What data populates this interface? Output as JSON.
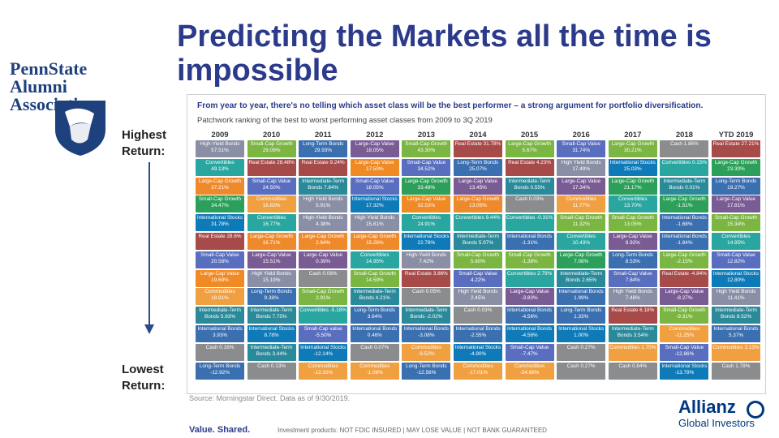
{
  "page": {
    "title": "Predicting the Markets all the time is impossible",
    "psu_logo_line1": "PennState",
    "psu_logo_line2": "Alumni Association",
    "label_high": "Highest Return:",
    "label_low": "Lowest Return:",
    "source": "Source: Morningstar Direct. Data as of 9/30/2019.",
    "footer_left": "Value. Shared.",
    "footer_mid": "Investment products: NOT FDIC INSURED | MAY LOSE VALUE | NOT BANK GUARANTEED",
    "allianz_name": "Allianz",
    "allianz_sub": "Global Investors"
  },
  "chart_data": {
    "type": "table",
    "title": "From year to year, there's no telling which asset class will be the best performer – a strong argument for portfolio diversification.",
    "subtitle": "Patchwork ranking of the best to worst performing asset classes from 2009 to 3Q 2019",
    "years": [
      "2009",
      "2010",
      "2011",
      "2012",
      "2013",
      "2014",
      "2015",
      "2016",
      "2017",
      "2018",
      "YTD 2019"
    ],
    "colors": {
      "High-Yield": "#7b7f9a",
      "Small-Cap Growth": "#7bb542",
      "Long-Term": "#3a6fb0",
      "Large-Cap Value": "#7a5c95",
      "Small-Cap Value": "#5a6ec0",
      "Real Estate": "#a64a4a",
      "Large-Cap": "#f08a24",
      "Cash": "#8a8c8e",
      "Large-Cap Growth": "#2ca05a",
      "Intermediate-Term": "#d34a6e",
      "Convertibles": "#2aa6a0",
      "International": "#0f7ab8",
      "Small-Cap": "#2a8a9a",
      "Commodities": "#9b4f96",
      "Long-Term 2": "#c25a3a"
    },
    "columns": [
      [
        {
          "text": "High-Yield Bonds 57.51%",
          "c": "#8a8fa5"
        },
        {
          "text": "Convertibles 49.13%",
          "c": "#2aa6a0"
        },
        {
          "text": "Large-Cap Growth 37.21%",
          "c": "#ef8a2c"
        },
        {
          "text": "Small-Cap Growth 34.47%",
          "c": "#2ca05a"
        },
        {
          "text": "International Stocks 31.78%",
          "c": "#0f7ab8"
        },
        {
          "text": "Real Estate 28.6%",
          "c": "#a64a4a"
        },
        {
          "text": "Small-Cap Value 20.58%",
          "c": "#5a6ec0"
        },
        {
          "text": "Large-Cap Value 19.69%",
          "c": "#f08a24"
        },
        {
          "text": "Commodities 18.91%",
          "c": "#f0a040"
        },
        {
          "text": "Intermediate-Term Bonds 5.93%",
          "c": "#2a8a9a"
        },
        {
          "text": "International Bonds 3.93%",
          "c": "#3a6fb0"
        },
        {
          "text": "Cash 0.16%",
          "c": "#8a8c8e"
        },
        {
          "text": "Long-Term Bonds -12.92%",
          "c": "#3a6fb0"
        }
      ],
      [
        {
          "text": "Small-Cap Growth 29.09%",
          "c": "#7bb542"
        },
        {
          "text": "Real Estate 28.48%",
          "c": "#a64a4a"
        },
        {
          "text": "Small-Cap Value 24.50%",
          "c": "#5a6ec0"
        },
        {
          "text": "Commodities 16.83%",
          "c": "#f0a040"
        },
        {
          "text": "Convertibles 16.77%",
          "c": "#2aa6a0"
        },
        {
          "text": "Large-Cap Growth 16.71%",
          "c": "#ef8a2c"
        },
        {
          "text": "Large-Cap Value 15.51%",
          "c": "#7a5c95"
        },
        {
          "text": "High Yield Bonds 15.19%",
          "c": "#8a8fa5"
        },
        {
          "text": "Long-Term Bonds 9.38%",
          "c": "#3a6fb0"
        },
        {
          "text": "Intermediate-Term Bonds 7.75%",
          "c": "#2a8a9a"
        },
        {
          "text": "International Stocks 8.78%",
          "c": "#0f7ab8"
        },
        {
          "text": "Intermediate-Term Bonds 3.44%",
          "c": "#2a8a9a"
        },
        {
          "text": "Cash 0.13%",
          "c": "#8a8c8e"
        }
      ],
      [
        {
          "text": "Long-Term Bonds 29.93%",
          "c": "#3a6fb0"
        },
        {
          "text": "Real Estate 9.24%",
          "c": "#a64a4a"
        },
        {
          "text": "Intermediate-Term Bonds 7.84%",
          "c": "#2a8a9a"
        },
        {
          "text": "High Yield Bonds 5.91%",
          "c": "#8a8fa5"
        },
        {
          "text": "High-Yield Bonds 4.38%",
          "c": "#8a8fa5"
        },
        {
          "text": "Large-Cap Growth 2.64%",
          "c": "#ef8a2c"
        },
        {
          "text": "Large-Cap Value 0.39%",
          "c": "#7a5c95"
        },
        {
          "text": "Cash 0.08%",
          "c": "#8a8c8e"
        },
        {
          "text": "Small-Cap Growth 2.91%",
          "c": "#7bb542"
        },
        {
          "text": "Convertibles -5.18%",
          "c": "#2aa6a0"
        },
        {
          "text": "Small-Cap value -5.50%",
          "c": "#5a6ec0"
        },
        {
          "text": "International Stocks -12.14%",
          "c": "#0f7ab8"
        },
        {
          "text": "Commodities -13.32%",
          "c": "#f0a040"
        }
      ],
      [
        {
          "text": "Large-Cap Value 18.05%",
          "c": "#7a5c95"
        },
        {
          "text": "Large-Cap Value 17.50%",
          "c": "#f08a24"
        },
        {
          "text": "Small-Cap Value 18.05%",
          "c": "#5a6ec0"
        },
        {
          "text": "International Stocks 17.32%",
          "c": "#0f7ab8"
        },
        {
          "text": "High-Yield Bonds 15.81%",
          "c": "#8a8fa5"
        },
        {
          "text": "Large-Cap Growth 15.26%",
          "c": "#ef8a2c"
        },
        {
          "text": "Convertibles 14.95%",
          "c": "#2aa6a0"
        },
        {
          "text": "Small-Cap Growth 14.59%",
          "c": "#7bb542"
        },
        {
          "text": "Intermediate-Term Bonds 4.21%",
          "c": "#2a8a9a"
        },
        {
          "text": "Long-Term Bonds 3.64%",
          "c": "#3a6fb0"
        },
        {
          "text": "International Bonds 0.46%",
          "c": "#3a6fb0"
        },
        {
          "text": "Cash 0.07%",
          "c": "#8a8c8e"
        },
        {
          "text": "Commodities -1.06%",
          "c": "#f0a040"
        }
      ],
      [
        {
          "text": "Small-Cap Growth 43.30%",
          "c": "#7bb542"
        },
        {
          "text": "Small-Cap Value 34.52%",
          "c": "#5a6ec0"
        },
        {
          "text": "Large-Cap Growth 33.48%",
          "c": "#2ca05a"
        },
        {
          "text": "Large-Cap Value 32.53%",
          "c": "#f08a24"
        },
        {
          "text": "Convertibles 24.91%",
          "c": "#2aa6a0"
        },
        {
          "text": "International Stocks 22.78%",
          "c": "#0f7ab8"
        },
        {
          "text": "High-Yield Bonds 7.42%",
          "c": "#8a8fa5"
        },
        {
          "text": "Real Estate 3.86%",
          "c": "#a64a4a"
        },
        {
          "text": "Cash 0.05%",
          "c": "#8a8c8e"
        },
        {
          "text": "Intermediate-Term Bonds -2.02%",
          "c": "#2a8a9a"
        },
        {
          "text": "International Bonds -3.08%",
          "c": "#3a6fb0"
        },
        {
          "text": "Commodities -9.52%",
          "c": "#f0a040"
        },
        {
          "text": "Long-Term Bonds -12.56%",
          "c": "#3a6fb0"
        }
      ],
      [
        {
          "text": "Real Estate 31.78%",
          "c": "#a64a4a"
        },
        {
          "text": "Long-Term Bonds 25.07%",
          "c": "#3a6fb0"
        },
        {
          "text": "Large-Cap Value 13.45%",
          "c": "#7a5c95"
        },
        {
          "text": "Large-Cap Growth 13.05%",
          "c": "#ef8a2c"
        },
        {
          "text": "Convertibles 9.44%",
          "c": "#2aa6a0"
        },
        {
          "text": "Intermediate-Term Bonds 5.97%",
          "c": "#2a8a9a"
        },
        {
          "text": "Small-Cap Growth 5.60%",
          "c": "#7bb542"
        },
        {
          "text": "Small-Cap Value 4.22%",
          "c": "#5a6ec0"
        },
        {
          "text": "High Yield Bonds 2.45%",
          "c": "#8a8fa5"
        },
        {
          "text": "Cash 0.03%",
          "c": "#8a8c8e"
        },
        {
          "text": "International Bonds -2.55%",
          "c": "#3a6fb0"
        },
        {
          "text": "International Stocks -4.90%",
          "c": "#0f7ab8"
        },
        {
          "text": "Commodities -17.01%",
          "c": "#f0a040"
        }
      ],
      [
        {
          "text": "Large-Cap Growth 5.67%",
          "c": "#7bb542"
        },
        {
          "text": "Real Estate 4.23%",
          "c": "#a64a4a"
        },
        {
          "text": "Intermediate-Term Bonds 0.55%",
          "c": "#2a8a9a"
        },
        {
          "text": "Cash 0.03%",
          "c": "#8a8c8e"
        },
        {
          "text": "Convertibles -0.31%",
          "c": "#2aa6a0"
        },
        {
          "text": "International Bonds -1.31%",
          "c": "#3a6fb0"
        },
        {
          "text": "Small-Cap Growth -1.38%",
          "c": "#7bb542"
        },
        {
          "text": "Convertibles 2.79%",
          "c": "#2aa6a0"
        },
        {
          "text": "Large-Cap Value -3.83%",
          "c": "#7a5c95"
        },
        {
          "text": "International Bonds -4.56%",
          "c": "#3a6fb0"
        },
        {
          "text": "International Bonds -4.56%",
          "c": "#0f7ab8"
        },
        {
          "text": "Small-Cap Value -7.47%",
          "c": "#5a6ec0"
        },
        {
          "text": "Commodities -24.66%",
          "c": "#f0a040"
        }
      ],
      [
        {
          "text": "Small-Cap Value 31.74%",
          "c": "#5a6ec0"
        },
        {
          "text": "High Yield Bonds 17.49%",
          "c": "#8a8fa5"
        },
        {
          "text": "Large-Cap Value 17.34%",
          "c": "#7a5c95"
        },
        {
          "text": "Commodities 11.77%",
          "c": "#f0a040"
        },
        {
          "text": "Small-Cap Growth 11.32%",
          "c": "#7bb542"
        },
        {
          "text": "Convertibles 10.43%",
          "c": "#2aa6a0"
        },
        {
          "text": "Large-Cap Growth 7.08%",
          "c": "#2ca05a"
        },
        {
          "text": "Intermediate-Term Bonds 2.65%",
          "c": "#2a8a9a"
        },
        {
          "text": "International Bonds 1.99%",
          "c": "#3a6fb0"
        },
        {
          "text": "Long-Term Bonds 1.33%",
          "c": "#3a6fb0"
        },
        {
          "text": "International Stocks 1.00%",
          "c": "#0f7ab8"
        },
        {
          "text": "Cash 0.27%",
          "c": "#8a8c8e"
        },
        {
          "text": "Cash 0.27%",
          "c": "#8a8c8e"
        }
      ],
      [
        {
          "text": "Large-Cap Growth 30.21%",
          "c": "#7bb542"
        },
        {
          "text": "International Stocks 25.03%",
          "c": "#0f7ab8"
        },
        {
          "text": "Large-Cap Growth 21.17%",
          "c": "#2ca05a"
        },
        {
          "text": "Convertibles 13.70%",
          "c": "#2aa6a0"
        },
        {
          "text": "Small-Cap Growth 13.05%",
          "c": "#7bb542"
        },
        {
          "text": "Large-Cap Value 9.92%",
          "c": "#7a5c95"
        },
        {
          "text": "Long-Term Bonds 8.53%",
          "c": "#3a6fb0"
        },
        {
          "text": "Small-Cap Value 7.84%",
          "c": "#5a6ec0"
        },
        {
          "text": "High Yield Bonds 7.48%",
          "c": "#8a8fa5"
        },
        {
          "text": "Real Estate 6.18%",
          "c": "#a64a4a"
        },
        {
          "text": "Intermediate-Term Bonds 3.54%",
          "c": "#2a8a9a"
        },
        {
          "text": "Commodities 1.70%",
          "c": "#f0a040"
        },
        {
          "text": "Cash 0.84%",
          "c": "#8a8c8e"
        }
      ],
      [
        {
          "text": "Cash 1.86%",
          "c": "#8a8c8e"
        },
        {
          "text": "Convertibles 0.15%",
          "c": "#2aa6a0"
        },
        {
          "text": "Intermediate-Term Bonds 0.01%",
          "c": "#2a8a9a"
        },
        {
          "text": "Large-Cap Growth -1.51%",
          "c": "#2ca05a"
        },
        {
          "text": "International Bonds -1.68%",
          "c": "#3a6fb0"
        },
        {
          "text": "International Bonds -1.84%",
          "c": "#3a6fb0"
        },
        {
          "text": "Large-Cap Growth -2.15%",
          "c": "#7bb542"
        },
        {
          "text": "Real Estate -4.84%",
          "c": "#a64a4a"
        },
        {
          "text": "Large-Cap Value -8.27%",
          "c": "#7a5c95"
        },
        {
          "text": "Small-Cap Growth -9.31%",
          "c": "#7bb542"
        },
        {
          "text": "Commodities -11.25%",
          "c": "#f0a040"
        },
        {
          "text": "Small-Cap Value -12.86%",
          "c": "#5a6ec0"
        },
        {
          "text": "International Stocks -13.79%",
          "c": "#0f7ab8"
        }
      ],
      [
        {
          "text": "Real Estate 27.21%",
          "c": "#a64a4a"
        },
        {
          "text": "Large-Cap Growth 23.30%",
          "c": "#2ca05a"
        },
        {
          "text": "Long-Term Bonds 19.27%",
          "c": "#3a6fb0"
        },
        {
          "text": "Large-Cap Value 17.81%",
          "c": "#7a5c95"
        },
        {
          "text": "Small-Cap Growth 15.34%",
          "c": "#7bb542"
        },
        {
          "text": "Convertibles 14.95%",
          "c": "#2aa6a0"
        },
        {
          "text": "Small-Cap Value 12.82%",
          "c": "#5a6ec0"
        },
        {
          "text": "International Stocks 12.80%",
          "c": "#0f7ab8"
        },
        {
          "text": "High Yield Bonds 11.41%",
          "c": "#8a8fa5"
        },
        {
          "text": "Intermediate-Term Bonds 8.52%",
          "c": "#2a8a9a"
        },
        {
          "text": "International Bonds 5.37%",
          "c": "#3a6fb0"
        },
        {
          "text": "Commodities 3.13%",
          "c": "#f0a040"
        },
        {
          "text": "Cash 1.78%",
          "c": "#8a8c8e"
        }
      ]
    ]
  }
}
